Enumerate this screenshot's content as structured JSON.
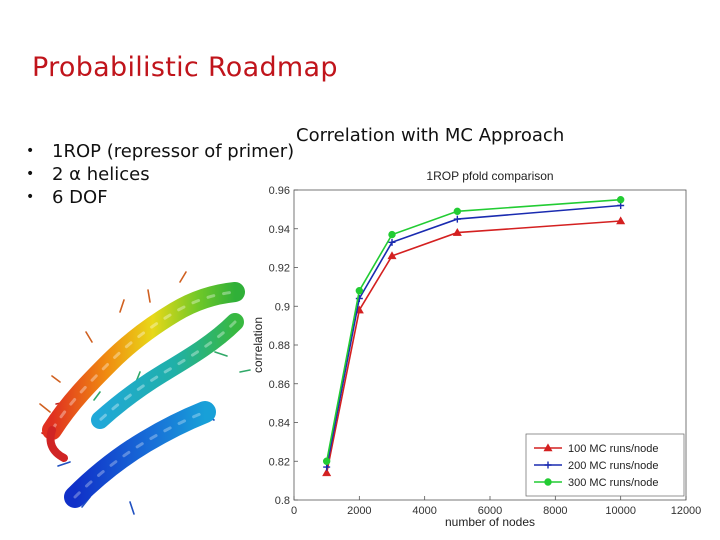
{
  "slide": {
    "title": "Probabilistic Roadmap",
    "bullets": [
      "1ROP (repressor of primer)",
      "2 α helices",
      "6 DOF"
    ],
    "chart_caption": "Correlation with MC Approach"
  },
  "chart_data": {
    "type": "line",
    "title": "1ROP pfold comparison",
    "xlabel": "number of nodes",
    "ylabel": "correlation",
    "xlim": [
      0,
      12000
    ],
    "ylim": [
      0.8,
      0.96
    ],
    "xticks": [
      0,
      2000,
      4000,
      6000,
      8000,
      10000,
      12000
    ],
    "xtick_labels": [
      "0",
      "2000",
      "4000",
      "6000",
      "8000",
      "10000",
      "12000"
    ],
    "yticks": [
      0.8,
      0.82,
      0.84,
      0.86,
      0.88,
      0.9,
      0.92,
      0.94,
      0.96
    ],
    "ytick_labels": [
      "0.8",
      "0.82",
      "0.84",
      "0.86",
      "0.88",
      "0.9",
      "0.92",
      "0.94",
      "0.96"
    ],
    "grid": false,
    "legend_position": "bottom-right",
    "x": [
      1000,
      2000,
      3000,
      5000,
      10000
    ],
    "series": [
      {
        "name": "100 MC runs/node",
        "color": "#d42020",
        "marker": "triangle",
        "values": [
          0.814,
          0.898,
          0.926,
          0.938,
          0.944
        ]
      },
      {
        "name": "200 MC runs/node",
        "color": "#1a2bb0",
        "marker": "plus",
        "values": [
          0.817,
          0.904,
          0.933,
          0.945,
          0.952
        ]
      },
      {
        "name": "300 MC runs/node",
        "color": "#22cc33",
        "marker": "circle",
        "values": [
          0.82,
          0.908,
          0.937,
          0.949,
          0.955
        ]
      }
    ]
  }
}
